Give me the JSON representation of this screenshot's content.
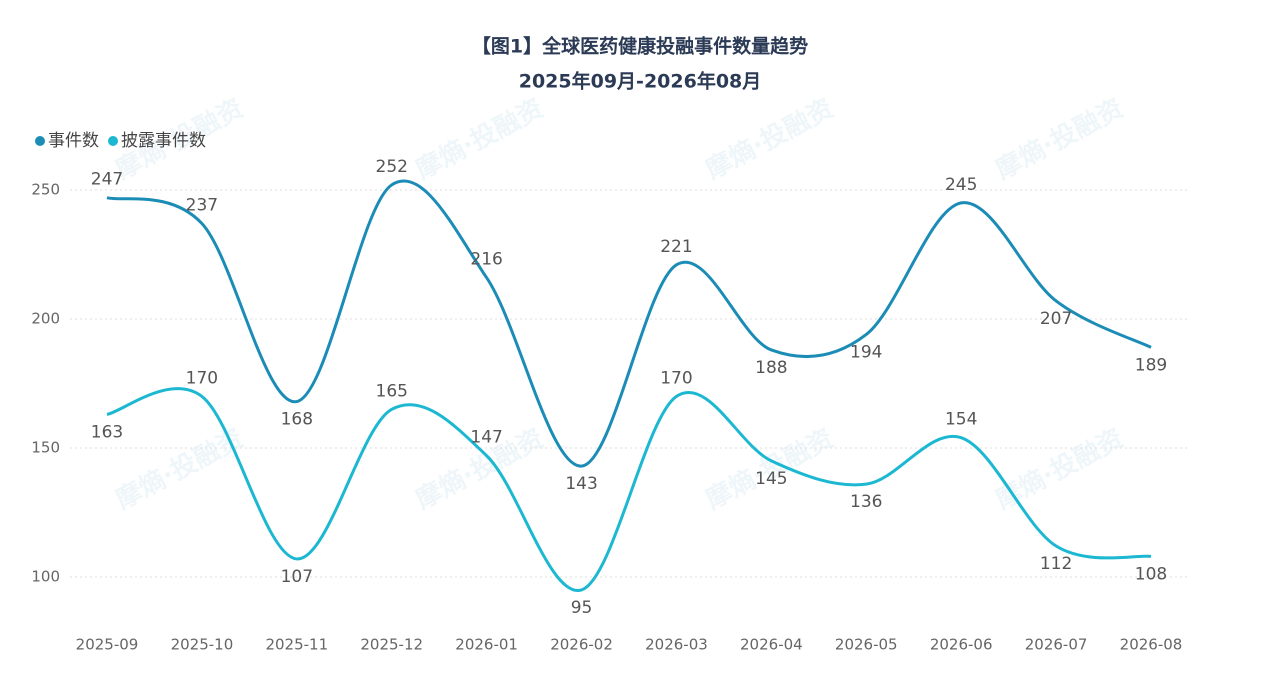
{
  "watermark": "摩熵·投融资",
  "chart_data": {
    "type": "line",
    "title": "【图1】全球医药健康投融事件数量趋势",
    "subtitle": "2025年09月-2026年08月",
    "categories": [
      "2025-09",
      "2025-10",
      "2025-11",
      "2025-12",
      "2026-01",
      "2026-02",
      "2026-03",
      "2026-04",
      "2026-05",
      "2026-06",
      "2026-07",
      "2026-08"
    ],
    "series": [
      {
        "name": "事件数",
        "color": "#1b8cb6",
        "values": [
          247,
          237,
          168,
          252,
          216,
          143,
          221,
          188,
          194,
          245,
          207,
          189
        ]
      },
      {
        "name": "披露事件数",
        "color": "#1cb8d2",
        "values": [
          163,
          170,
          107,
          165,
          147,
          95,
          170,
          145,
          136,
          154,
          112,
          108
        ]
      }
    ],
    "ylim": [
      80,
      260
    ],
    "yticks": [
      100,
      150,
      200,
      250
    ],
    "grid": true,
    "smooth": true,
    "legend": "top-left"
  }
}
